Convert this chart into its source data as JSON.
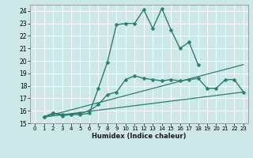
{
  "xlabel": "Humidex (Indice chaleur)",
  "bg_color": "#cce8e8",
  "grid_color": "#ffffff",
  "line_color": "#2d7d70",
  "xlim": [
    -0.5,
    23.5
  ],
  "ylim": [
    15,
    24.5
  ],
  "xticks": [
    0,
    1,
    2,
    3,
    4,
    5,
    6,
    7,
    8,
    9,
    10,
    11,
    12,
    13,
    14,
    15,
    16,
    17,
    18,
    19,
    20,
    21,
    22,
    23
  ],
  "yticks": [
    15,
    16,
    17,
    18,
    19,
    20,
    21,
    22,
    23,
    24
  ],
  "series": [
    {
      "x": [
        1,
        2,
        3,
        4,
        5,
        6,
        7,
        8,
        9,
        10,
        11,
        12,
        13,
        14,
        15,
        16,
        17,
        18
      ],
      "y": [
        15.5,
        15.8,
        15.6,
        15.7,
        15.7,
        15.8,
        17.8,
        19.9,
        22.9,
        23.0,
        23.0,
        24.1,
        22.6,
        24.2,
        22.5,
        21.0,
        21.5,
        19.7
      ],
      "marker": "D",
      "markersize": 2.5,
      "linewidth": 1.0
    },
    {
      "x": [
        1,
        2,
        3,
        4,
        5,
        6,
        7,
        8,
        9,
        10,
        11,
        12,
        13,
        14,
        15,
        16,
        17,
        18,
        19,
        20,
        21,
        22,
        23
      ],
      "y": [
        15.5,
        15.8,
        15.7,
        15.7,
        15.8,
        16.0,
        16.5,
        17.3,
        17.5,
        18.5,
        18.8,
        18.6,
        18.5,
        18.4,
        18.5,
        18.4,
        18.5,
        18.6,
        17.8,
        17.8,
        18.5,
        18.5,
        17.5
      ],
      "marker": "D",
      "markersize": 2.5,
      "linewidth": 1.0
    },
    {
      "x": [
        1,
        23
      ],
      "y": [
        15.5,
        19.7
      ],
      "marker": null,
      "linewidth": 0.9
    },
    {
      "x": [
        1,
        23
      ],
      "y": [
        15.5,
        17.5
      ],
      "marker": null,
      "linewidth": 0.9
    }
  ]
}
